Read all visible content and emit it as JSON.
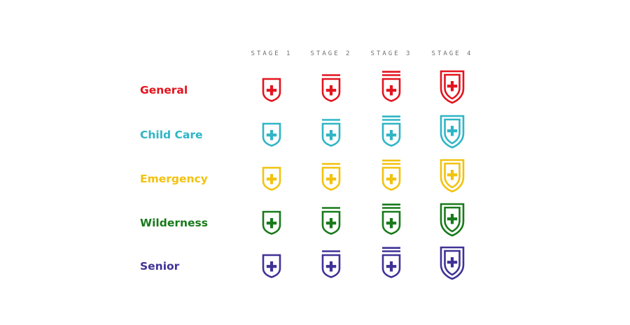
{
  "stages": [
    "STAGE 1",
    "STAGE 2",
    "STAGE 3",
    "STAGE 4"
  ],
  "rows": [
    {
      "label": "General",
      "color": "#e3141e"
    },
    {
      "label": "Child Care",
      "color": "#2fb5c6"
    },
    {
      "label": "Emergency",
      "color": "#f2c20d"
    },
    {
      "label": "Wilderness",
      "color": "#187a1b"
    },
    {
      "label": "Senior",
      "color": "#3f3296"
    }
  ],
  "icon": "shield-with-cross-icon"
}
